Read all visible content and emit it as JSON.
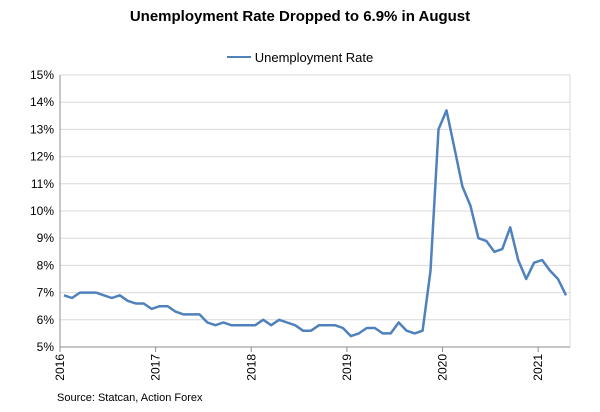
{
  "chart_data": {
    "type": "line",
    "title": "Unemployment  Rate Dropped to 6.9% in August",
    "legend": [
      "Unemployment Rate"
    ],
    "legend_position": "top-center",
    "xlabel": "",
    "ylabel": "",
    "ylim": [
      5,
      15
    ],
    "y_ticks": [
      "5%",
      "6%",
      "7%",
      "8%",
      "9%",
      "10%",
      "11%",
      "12%",
      "13%",
      "14%",
      "15%"
    ],
    "x_ticks": [
      "2016",
      "2017",
      "2018",
      "2019",
      "2020",
      "2021"
    ],
    "grid": true,
    "start": "2016-01",
    "series": [
      {
        "name": "Unemployment Rate",
        "color": "#4f81bd",
        "values": [
          6.9,
          6.8,
          7.0,
          7.0,
          7.0,
          6.9,
          6.8,
          6.9,
          6.7,
          6.6,
          6.6,
          6.4,
          6.5,
          6.5,
          6.3,
          6.2,
          6.2,
          6.2,
          5.9,
          5.8,
          5.9,
          5.8,
          5.8,
          5.8,
          5.8,
          6.0,
          5.8,
          6.0,
          5.9,
          5.8,
          5.6,
          5.6,
          5.8,
          5.8,
          5.8,
          5.7,
          5.4,
          5.5,
          5.7,
          5.7,
          5.5,
          5.5,
          5.9,
          5.6,
          5.5,
          5.6,
          7.8,
          13.0,
          13.7,
          12.3,
          10.9,
          10.2,
          9.0,
          8.9,
          8.5,
          8.6,
          9.4,
          8.2,
          7.5,
          8.1,
          8.2,
          7.8,
          7.5,
          6.9
        ]
      }
    ]
  },
  "source": "Source: Statcan, Action Forex"
}
